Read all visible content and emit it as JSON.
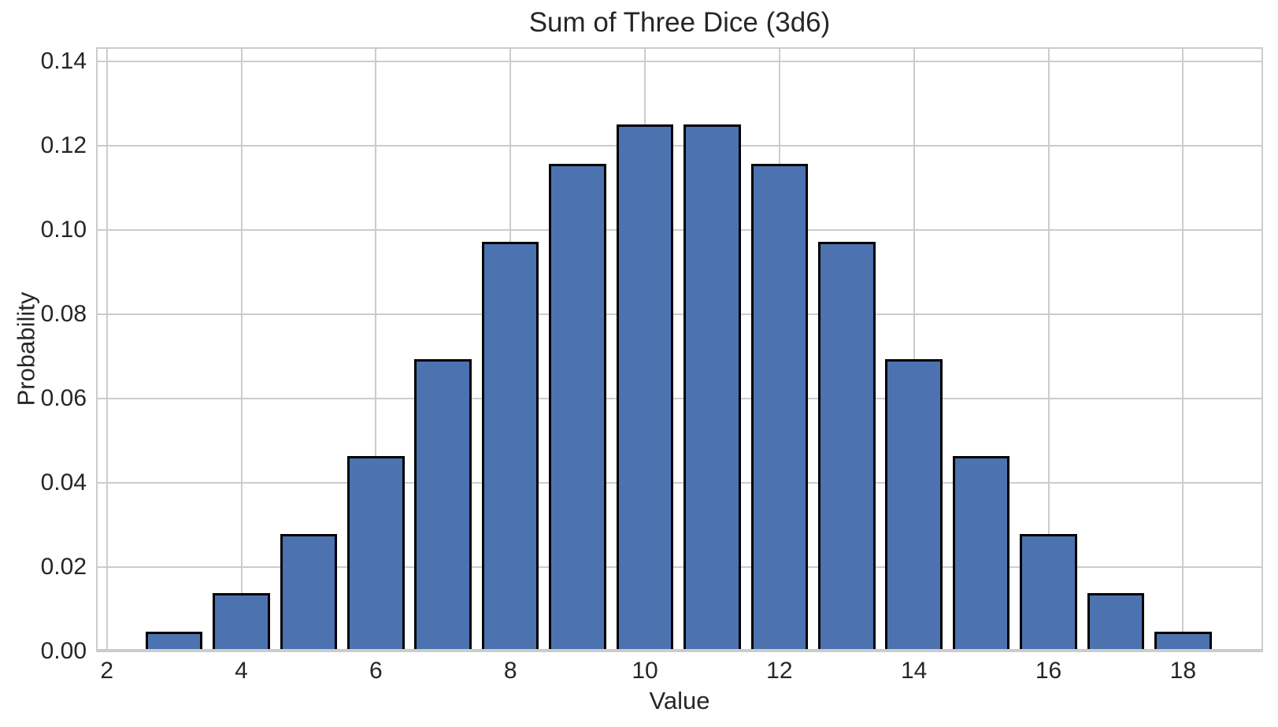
{
  "chart_data": {
    "type": "bar",
    "title": "Sum of Three Dice (3d6)",
    "xlabel": "Value",
    "ylabel": "Probability",
    "categories": [
      3,
      4,
      5,
      6,
      7,
      8,
      9,
      10,
      11,
      12,
      13,
      14,
      15,
      16,
      17,
      18
    ],
    "values": [
      0.00463,
      0.01389,
      0.02778,
      0.0463,
      0.06944,
      0.09722,
      0.11574,
      0.125,
      0.125,
      0.11574,
      0.09722,
      0.06944,
      0.0463,
      0.02778,
      0.01389,
      0.00463
    ],
    "bar_width": 0.85,
    "xlim": [
      1.84,
      19.19
    ],
    "ylim": [
      0,
      0.1434
    ],
    "xticks": [
      2,
      4,
      6,
      8,
      10,
      12,
      14,
      16,
      18
    ],
    "xtick_labels": [
      "2",
      "4",
      "6",
      "8",
      "10",
      "12",
      "14",
      "16",
      "18"
    ],
    "yticks": [
      0.0,
      0.02,
      0.04,
      0.06,
      0.08,
      0.1,
      0.12,
      0.14
    ],
    "ytick_labels": [
      "0.00",
      "0.02",
      "0.04",
      "0.06",
      "0.08",
      "0.10",
      "0.12",
      "0.14"
    ],
    "grid": true,
    "grid_axis": "both",
    "legend": null,
    "colors": {
      "bar_fill": "#4C72B0",
      "bar_edge": "#000000",
      "grid": "#CCCCCC",
      "spine": "#CCCCCC",
      "text": "#262626",
      "background": "#FFFFFF"
    }
  }
}
